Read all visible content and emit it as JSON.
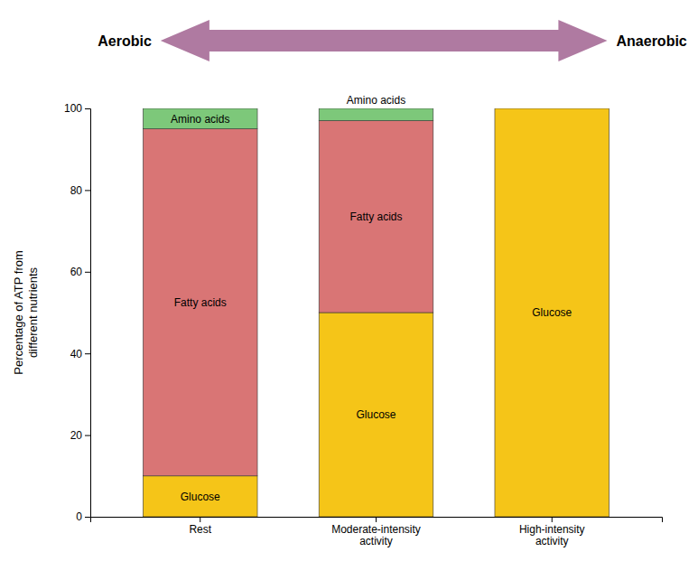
{
  "chart_data": {
    "type": "bar",
    "stacked": true,
    "categories": [
      "Rest",
      "Moderate-intensity\nactivity",
      "High-intensity\nactivity"
    ],
    "series": [
      {
        "name": "Glucose",
        "color": "#F5C518",
        "values": [
          10,
          50,
          100
        ]
      },
      {
        "name": "Fatty acids",
        "color": "#D97575",
        "values": [
          85,
          47,
          0
        ]
      },
      {
        "name": "Amino acids",
        "color": "#7DC87A",
        "values": [
          5,
          3,
          0
        ]
      }
    ],
    "ylabel": "Percentage of ATP from\ndifferent nutrients",
    "ylim": [
      0,
      100
    ],
    "yticks": [
      0,
      20,
      40,
      60,
      80,
      100
    ],
    "annotations": [
      {
        "text": "Aerobic",
        "side": "left"
      },
      {
        "text": "Anaerobic",
        "side": "right"
      },
      {
        "text": "Glucose",
        "x": "Rest",
        "series": "Glucose"
      },
      {
        "text": "Glucose",
        "x": "Moderate-intensity\nactivity",
        "series": "Glucose"
      },
      {
        "text": "Glucose",
        "x": "High-intensity\nactivity",
        "series": "Glucose"
      },
      {
        "text": "Fatty acids",
        "x": "Rest",
        "series": "Fatty acids"
      },
      {
        "text": "Fatty acids",
        "x": "Moderate-intensity\nactivity",
        "series": "Fatty acids"
      },
      {
        "text": "Amino acids",
        "x": "Rest",
        "series": "Amino acids"
      },
      {
        "text": "Amino acids",
        "x": "Moderate-intensity\nactivity",
        "series": "Amino acids"
      }
    ]
  }
}
